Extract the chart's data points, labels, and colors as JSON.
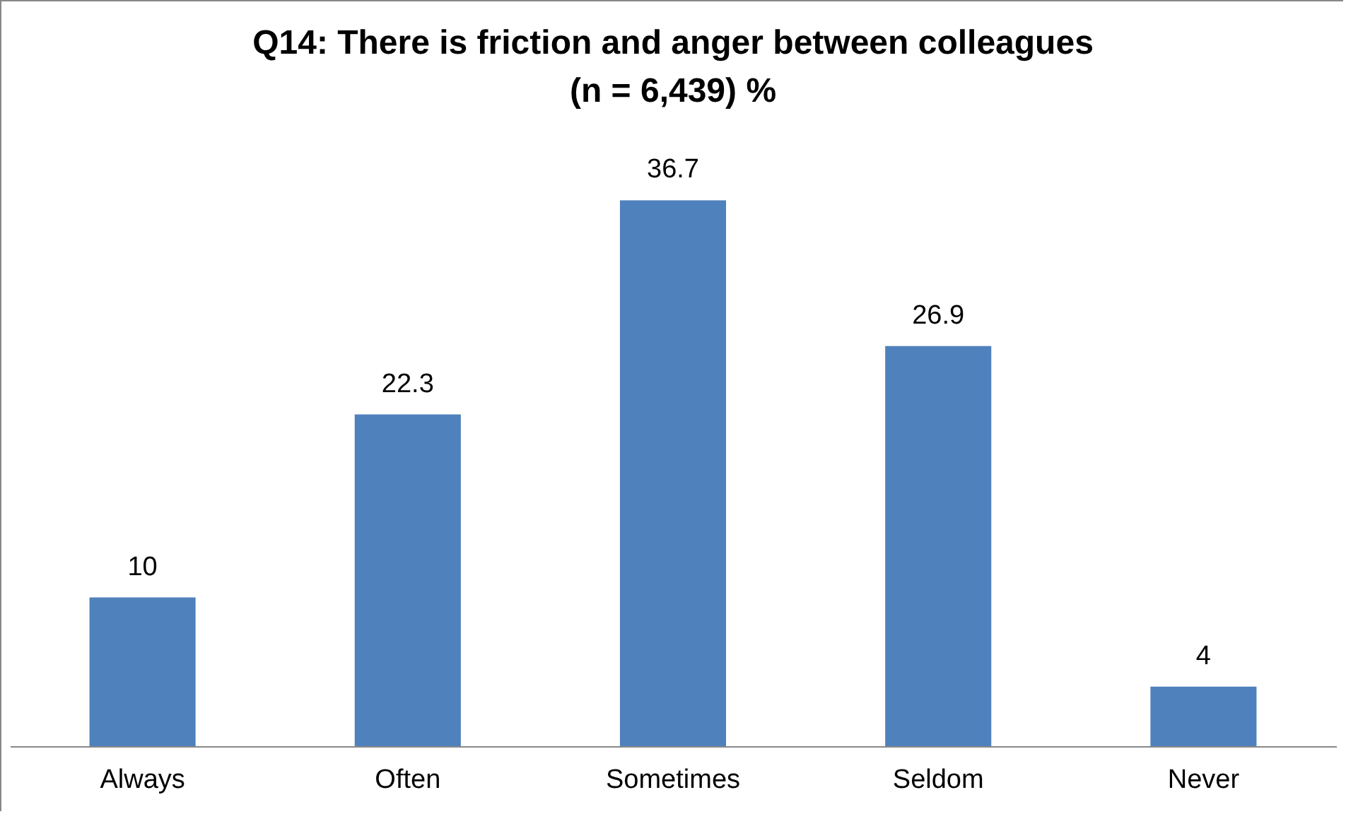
{
  "chart_data": {
    "type": "bar",
    "title": "Q14: There is friction and anger between colleagues\n(n = 6,439)  %",
    "categories": [
      "Always",
      "Often",
      "Sometimes",
      "Seldom",
      "Never"
    ],
    "values": [
      10,
      22.3,
      36.7,
      26.9,
      4
    ],
    "color": "#4f81bd",
    "data_labels": true,
    "grid": false
  }
}
